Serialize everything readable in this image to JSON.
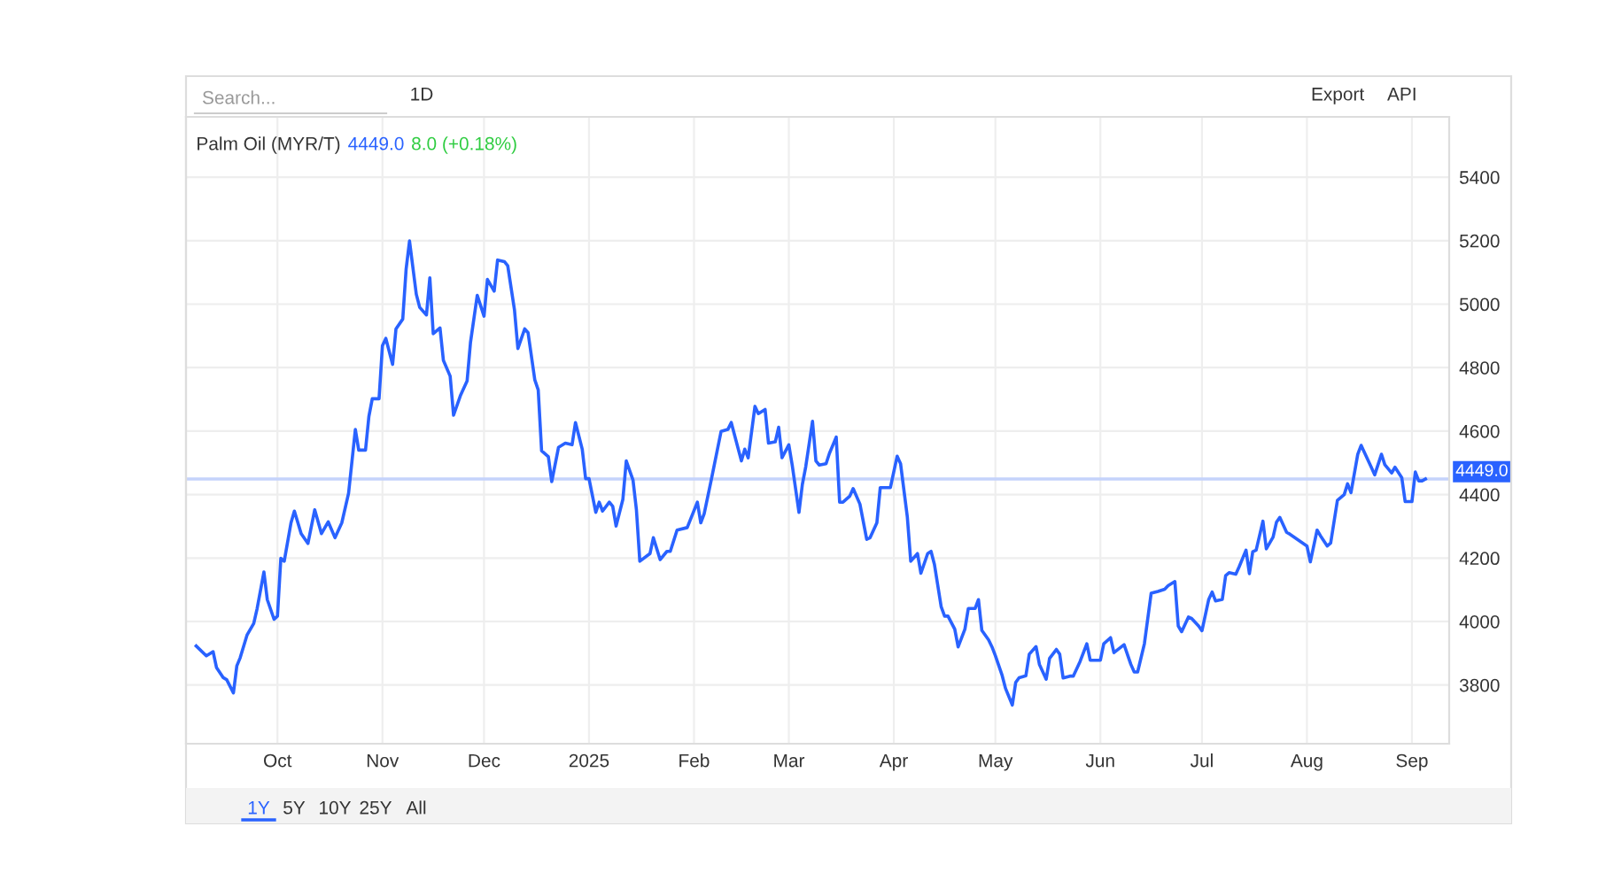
{
  "chart_data": {
    "type": "line",
    "title": "Palm Oil (MYR/T)",
    "annotations": [
      "4449.0",
      "8.0 (+0.18%)",
      "Search...",
      "1D",
      "Export",
      "API",
      "1Y",
      "5Y",
      "10Y",
      "25Y",
      "All"
    ],
    "x": [
      "2024-09-07",
      "2024-09-10",
      "2024-09-12",
      "2024-09-13",
      "2024-09-15",
      "2024-09-16",
      "2024-09-18",
      "2024-09-19",
      "2024-09-20",
      "2024-09-22",
      "2024-09-24",
      "2024-09-25",
      "2024-09-27",
      "2024-09-28",
      "2024-09-30",
      "2024-10-01",
      "2024-10-02",
      "2024-10-03",
      "2024-10-05",
      "2024-10-06",
      "2024-10-08",
      "2024-10-10",
      "2024-10-12",
      "2024-10-14",
      "2024-10-16",
      "2024-10-18",
      "2024-10-20",
      "2024-10-22",
      "2024-10-24",
      "2024-10-25",
      "2024-10-27",
      "2024-10-28",
      "2024-10-29",
      "2024-10-31",
      "2024-11-01",
      "2024-11-02",
      "2024-11-04",
      "2024-11-05",
      "2024-11-07",
      "2024-11-08",
      "2024-11-09",
      "2024-11-11",
      "2024-11-12",
      "2024-11-14",
      "2024-11-15",
      "2024-11-16",
      "2024-11-18",
      "2024-11-19",
      "2024-11-21",
      "2024-11-22",
      "2024-11-24",
      "2024-11-26",
      "2024-11-27",
      "2024-11-29",
      "2024-12-01",
      "2024-12-02",
      "2024-12-04",
      "2024-12-05",
      "2024-12-07",
      "2024-12-08",
      "2024-12-10",
      "2024-12-11",
      "2024-12-13",
      "2024-12-14",
      "2024-12-16",
      "2024-12-17",
      "2024-12-18",
      "2024-12-20",
      "2024-12-21",
      "2024-12-23",
      "2024-12-25",
      "2024-12-27",
      "2024-12-28",
      "2024-12-30",
      "2024-12-31",
      "2025-01-01",
      "2025-01-03",
      "2025-01-04",
      "2025-01-05",
      "2025-01-07",
      "2025-01-08",
      "2025-01-09",
      "2025-01-11",
      "2025-01-12",
      "2025-01-14",
      "2025-01-15",
      "2025-01-16",
      "2025-01-19",
      "2025-01-20",
      "2025-01-22",
      "2025-01-24",
      "2025-01-25",
      "2025-01-27",
      "2025-01-30",
      "2025-02-02",
      "2025-02-03",
      "2025-02-04",
      "2025-02-06",
      "2025-02-09",
      "2025-02-11",
      "2025-02-12",
      "2025-02-15",
      "2025-02-16",
      "2025-02-17",
      "2025-02-19",
      "2025-02-20",
      "2025-02-22",
      "2025-02-23",
      "2025-02-25",
      "2025-02-26",
      "2025-02-27",
      "2025-03-01",
      "2025-03-02",
      "2025-03-04",
      "2025-03-05",
      "2025-03-06",
      "2025-03-08",
      "2025-03-09",
      "2025-03-10",
      "2025-03-12",
      "2025-03-13",
      "2025-03-15",
      "2025-03-16",
      "2025-03-17",
      "2025-03-19",
      "2025-03-20",
      "2025-03-22",
      "2025-03-24",
      "2025-03-25",
      "2025-03-27",
      "2025-03-28",
      "2025-03-31",
      "2025-04-02",
      "2025-04-03",
      "2025-04-05",
      "2025-04-06",
      "2025-04-08",
      "2025-04-09",
      "2025-04-11",
      "2025-04-12",
      "2025-04-13",
      "2025-04-15",
      "2025-04-16",
      "2025-04-17",
      "2025-04-19",
      "2025-04-20",
      "2025-04-22",
      "2025-04-23",
      "2025-04-25",
      "2025-04-26",
      "2025-04-27",
      "2025-04-29",
      "2025-04-30",
      "2025-05-01",
      "2025-05-03",
      "2025-05-04",
      "2025-05-06",
      "2025-05-07",
      "2025-05-08",
      "2025-05-10",
      "2025-05-11",
      "2025-05-13",
      "2025-05-14",
      "2025-05-16",
      "2025-05-17",
      "2025-05-19",
      "2025-05-20",
      "2025-05-21",
      "2025-05-23",
      "2025-05-24",
      "2025-05-26",
      "2025-05-28",
      "2025-05-29",
      "2025-06-01",
      "2025-06-02",
      "2025-06-04",
      "2025-06-05",
      "2025-06-08",
      "2025-06-10",
      "2025-06-11",
      "2025-06-12",
      "2025-06-14",
      "2025-06-16",
      "2025-06-18",
      "2025-06-20",
      "2025-06-21",
      "2025-06-23",
      "2025-06-24",
      "2025-06-25",
      "2025-06-27",
      "2025-06-28",
      "2025-06-30",
      "2025-07-01",
      "2025-07-03",
      "2025-07-04",
      "2025-07-05",
      "2025-07-07",
      "2025-07-08",
      "2025-07-09",
      "2025-07-11",
      "2025-07-12",
      "2025-07-14",
      "2025-07-15",
      "2025-07-16",
      "2025-07-17",
      "2025-07-19",
      "2025-07-20",
      "2025-07-22",
      "2025-07-23",
      "2025-07-24",
      "2025-07-26",
      "2025-07-27",
      "2025-08-01",
      "2025-08-02",
      "2025-08-04",
      "2025-08-05",
      "2025-08-07",
      "2025-08-08",
      "2025-08-10",
      "2025-08-12",
      "2025-08-13",
      "2025-08-14",
      "2025-08-16",
      "2025-08-17",
      "2025-08-19",
      "2025-08-20",
      "2025-08-21",
      "2025-08-23",
      "2025-08-24",
      "2025-08-26",
      "2025-08-27",
      "2025-08-29",
      "2025-08-30",
      "2025-09-01",
      "2025-09-02",
      "2025-09-03",
      "2025-09-04",
      "2025-09-05"
    ],
    "series": [
      {
        "color": "#2962ff",
        "values": [
          3923,
          3892,
          3905,
          3855,
          3823,
          3817,
          3775,
          3860,
          3886,
          3957,
          3994,
          4041,
          4156,
          4069,
          4007,
          4017,
          4199,
          4190,
          4311,
          4348,
          4277,
          4246,
          4352,
          4277,
          4314,
          4264,
          4311,
          4404,
          4605,
          4540,
          4540,
          4646,
          4702,
          4702,
          4869,
          4892,
          4810,
          4922,
          4953,
          5111,
          5199,
          5031,
          4990,
          4966,
          5083,
          4907,
          4925,
          4823,
          4773,
          4650,
          4711,
          4758,
          4879,
          5028,
          4962,
          5078,
          5041,
          5139,
          5134,
          5121,
          4981,
          4860,
          4922,
          4910,
          4761,
          4730,
          4538,
          4519,
          4441,
          4549,
          4562,
          4557,
          4627,
          4543,
          4450,
          4450,
          4344,
          4376,
          4348,
          4376,
          4363,
          4301,
          4385,
          4506,
          4445,
          4352,
          4190,
          4214,
          4264,
          4195,
          4221,
          4221,
          4288,
          4296,
          4376,
          4311,
          4339,
          4441,
          4599,
          4605,
          4627,
          4506,
          4543,
          4516,
          4678,
          4655,
          4668,
          4562,
          4566,
          4612,
          4516,
          4557,
          4493,
          4344,
          4432,
          4488,
          4631,
          4506,
          4493,
          4497,
          4530,
          4581,
          4376,
          4376,
          4395,
          4419,
          4370,
          4259,
          4264,
          4311,
          4422,
          4422,
          4521,
          4497,
          4329,
          4190,
          4214,
          4152,
          4214,
          4221,
          4180,
          4046,
          4017,
          4017,
          3976,
          3920,
          3976,
          4041,
          4041,
          4069,
          3972,
          3942,
          3920,
          3892,
          3830,
          3789,
          3737,
          3808,
          3823,
          3829,
          3897,
          3921,
          3865,
          3818,
          3884,
          3912,
          3897,
          3822,
          3828,
          3828,
          3874,
          3930,
          3878,
          3878,
          3930,
          3949,
          3902,
          3927,
          3865,
          3841,
          3841,
          3930,
          4089,
          4095,
          4102,
          4113,
          4126,
          3986,
          3968,
          4014,
          4009,
          3986,
          3971,
          4070,
          4093,
          4065,
          4070,
          4145,
          4154,
          4149,
          4173,
          4225,
          4151,
          4220,
          4225,
          4316,
          4229,
          4266,
          4313,
          4328,
          4281,
          4275,
          4238,
          4188,
          4288,
          4270,
          4238,
          4247,
          4382,
          4400,
          4434,
          4406,
          4527,
          4555,
          4509,
          4486,
          4462,
          4527,
          4494,
          4468,
          4486,
          4453,
          4378,
          4378,
          4471,
          4443,
          4443,
          4449
        ]
      }
    ],
    "ref_lines": [
      {
        "axis": "y",
        "value": 4449,
        "label": "4449.0",
        "color": "#c5d3fb"
      }
    ],
    "xlim": [
      "2024-09-04",
      "2025-09-12"
    ],
    "xticks": [
      {
        "value": "2024-10-01",
        "label": "Oct"
      },
      {
        "value": "2024-11-01",
        "label": "Nov"
      },
      {
        "value": "2024-12-01",
        "label": "Dec"
      },
      {
        "value": "2025-01-01",
        "label": "2025"
      },
      {
        "value": "2025-02-01",
        "label": "Feb"
      },
      {
        "value": "2025-03-01",
        "label": "Mar"
      },
      {
        "value": "2025-04-01",
        "label": "Apr"
      },
      {
        "value": "2025-05-01",
        "label": "May"
      },
      {
        "value": "2025-06-01",
        "label": "Jun"
      },
      {
        "value": "2025-07-01",
        "label": "Jul"
      },
      {
        "value": "2025-08-01",
        "label": "Aug"
      },
      {
        "value": "2025-09-01",
        "label": "Sep"
      }
    ],
    "ylim": [
      3615,
      5590
    ],
    "yticks": [
      3800,
      4000,
      4200,
      4400,
      4600,
      4800,
      5000,
      5200,
      5400
    ],
    "grid": true,
    "marker": "none",
    "line_style": "solid"
  }
}
